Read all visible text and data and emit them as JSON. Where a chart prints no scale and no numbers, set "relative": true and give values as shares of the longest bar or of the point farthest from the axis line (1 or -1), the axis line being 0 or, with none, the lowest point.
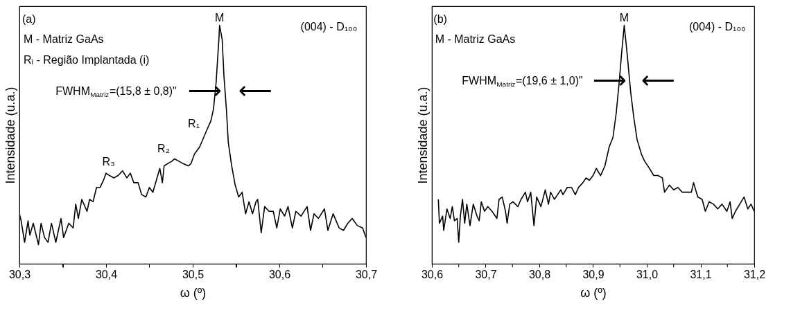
{
  "chart_data": [
    {
      "type": "line",
      "relative": true,
      "xlabel": "ω (º)",
      "ylabel": "Intensidade (u.a.)",
      "xlim": [
        30.3,
        30.7
      ],
      "xticks": [
        {
          "value": 30.3,
          "label": "30,3"
        },
        {
          "value": 30.35,
          "label": null
        },
        {
          "value": 30.4,
          "label": "30,4"
        },
        {
          "value": 30.45,
          "label": null
        },
        {
          "value": 30.5,
          "label": "30,5"
        },
        {
          "value": 30.55,
          "label": null
        },
        {
          "value": 30.6,
          "label": "30,6"
        },
        {
          "value": 30.65,
          "label": null
        },
        {
          "value": 30.7,
          "label": "30,7"
        }
      ],
      "tick_labels": "x",
      "legend": false,
      "grid": false,
      "series": [
        {
          "color": "#000000",
          "x": [
            30.3,
            30.302,
            30.306,
            30.31,
            30.312,
            30.316,
            30.322,
            30.325,
            30.329,
            30.333,
            30.337,
            30.342,
            30.348,
            30.351,
            30.357,
            30.362,
            30.365,
            30.368,
            30.372,
            30.378,
            30.381,
            30.385,
            30.389,
            30.393,
            30.397,
            30.4,
            30.404,
            30.409,
            30.414,
            30.419,
            30.424,
            30.428,
            30.432,
            30.437,
            30.441,
            30.446,
            30.45,
            30.454,
            30.458,
            30.462,
            30.465,
            30.467,
            30.471,
            30.476,
            30.479,
            30.484,
            30.489,
            30.495,
            30.498,
            30.502,
            30.508,
            30.515,
            30.521,
            30.524,
            30.527,
            30.53,
            30.531,
            30.534,
            30.536,
            30.539,
            30.541,
            30.545,
            30.549,
            30.553,
            30.557,
            30.561,
            30.565,
            30.569,
            30.573,
            30.575,
            30.579,
            30.583,
            30.588,
            30.593,
            30.597,
            30.601,
            30.606,
            30.61,
            30.615,
            30.619,
            30.625,
            30.632,
            30.636,
            30.64,
            30.645,
            30.652,
            30.656,
            30.662,
            30.669,
            30.674,
            30.679,
            30.684,
            30.69,
            30.696,
            30.7
          ],
          "values": [
            0.21,
            0.18,
            0.09,
            0.18,
            0.12,
            0.17,
            0.08,
            0.17,
            0.11,
            0.09,
            0.17,
            0.09,
            0.19,
            0.11,
            0.17,
            0.15,
            0.25,
            0.19,
            0.27,
            0.22,
            0.27,
            0.26,
            0.32,
            0.32,
            0.35,
            0.38,
            0.37,
            0.36,
            0.37,
            0.39,
            0.36,
            0.38,
            0.34,
            0.34,
            0.29,
            0.28,
            0.32,
            0.3,
            0.35,
            0.4,
            0.34,
            0.41,
            0.42,
            0.43,
            0.44,
            0.43,
            0.42,
            0.41,
            0.42,
            0.46,
            0.49,
            0.55,
            0.6,
            0.65,
            0.76,
            0.93,
            1,
            0.94,
            0.79,
            0.64,
            0.51,
            0.41,
            0.33,
            0.28,
            0.3,
            0.21,
            0.26,
            0.21,
            0.26,
            0.27,
            0.13,
            0.24,
            0.22,
            0.22,
            0.15,
            0.23,
            0.2,
            0.24,
            0.15,
            0.22,
            0.2,
            0.24,
            0.14,
            0.21,
            0.19,
            0.23,
            0.14,
            0.21,
            0.15,
            0.14,
            0.17,
            0.19,
            0.16,
            0.15,
            0.11
          ]
        }
      ],
      "annotations": [
        "(a)",
        "M - Matriz GaAs",
        "Rᵢ - Região Implantada (i)",
        "(004) - D₁₀₀",
        "FWHM$_{Matriz}$=(15,8 ± 0,8)\"",
        "R₁",
        "R₂",
        "R₃",
        "⟶",
        "⟵",
        {
          "text": "M",
          "x": 30.531,
          "y": 1
        }
      ]
    },
    {
      "type": "line",
      "relative": true,
      "xlabel": "ω (º)",
      "ylabel": "Intensidade (u.a.)",
      "xlim": [
        30.6,
        31.2
      ],
      "xticks": [
        {
          "value": 30.6,
          "label": "30,6"
        },
        {
          "value": 30.65,
          "label": null
        },
        {
          "value": 30.7,
          "label": "30,7"
        },
        {
          "value": 30.75,
          "label": null
        },
        {
          "value": 30.8,
          "label": "30,8"
        },
        {
          "value": 30.85,
          "label": null
        },
        {
          "value": 30.9,
          "label": "30,9"
        },
        {
          "value": 30.95,
          "label": null
        },
        {
          "value": 31.0,
          "label": "31,0"
        },
        {
          "value": 31.05,
          "label": null
        },
        {
          "value": 31.1,
          "label": "31,1"
        },
        {
          "value": 31.15,
          "label": null
        },
        {
          "value": 31.2,
          "label": "31,2"
        }
      ],
      "tick_labels": "x",
      "legend": false,
      "grid": false,
      "series": [
        {
          "color": "#000000",
          "x": [
            30.612,
            30.614,
            30.62,
            30.622,
            30.628,
            30.634,
            30.638,
            30.642,
            30.647,
            30.65,
            30.653,
            30.657,
            30.661,
            30.665,
            30.671,
            30.677,
            30.684,
            30.688,
            30.692,
            30.698,
            30.704,
            30.712,
            30.721,
            30.725,
            30.731,
            30.737,
            30.74,
            30.745,
            30.751,
            30.76,
            30.766,
            30.774,
            30.778,
            30.784,
            30.79,
            30.795,
            30.803,
            30.811,
            30.817,
            30.821,
            30.828,
            30.834,
            30.84,
            30.844,
            30.852,
            30.86,
            30.867,
            30.873,
            30.881,
            30.887,
            30.893,
            30.9,
            30.906,
            30.914,
            30.922,
            30.926,
            30.93,
            30.937,
            30.943,
            30.949,
            30.953,
            30.958,
            30.963,
            30.97,
            30.976,
            30.982,
            30.99,
            30.996,
            31.005,
            31.013,
            31.021,
            31.029,
            31.033,
            31.042,
            31.05,
            31.058,
            31.066,
            31.074,
            31.083,
            31.087,
            31.095,
            31.103,
            31.109,
            31.116,
            31.124,
            31.132,
            31.14,
            31.149,
            31.155,
            31.159,
            31.165,
            31.173,
            31.181,
            31.188,
            31.194,
            31.2
          ],
          "values": [
            0.27,
            0.17,
            0.2,
            0.14,
            0.23,
            0.19,
            0.24,
            0.18,
            0.19,
            0.09,
            0.2,
            0.27,
            0.17,
            0.25,
            0.16,
            0.25,
            0.2,
            0.18,
            0.26,
            0.22,
            0.24,
            0.22,
            0.19,
            0.27,
            0.28,
            0.22,
            0.17,
            0.25,
            0.26,
            0.24,
            0.27,
            0.3,
            0.26,
            0.3,
            0.16,
            0.28,
            0.24,
            0.31,
            0.25,
            0.3,
            0.27,
            0.29,
            0.31,
            0.29,
            0.32,
            0.32,
            0.29,
            0.32,
            0.34,
            0.36,
            0.35,
            0.37,
            0.4,
            0.37,
            0.41,
            0.45,
            0.49,
            0.53,
            0.63,
            0.77,
            0.88,
            1,
            0.89,
            0.72,
            0.61,
            0.52,
            0.46,
            0.43,
            0.4,
            0.37,
            0.37,
            0.36,
            0.3,
            0.33,
            0.31,
            0.32,
            0.3,
            0.3,
            0.3,
            0.34,
            0.28,
            0.27,
            0.22,
            0.26,
            0.25,
            0.23,
            0.25,
            0.22,
            0.26,
            0.19,
            0.22,
            0.25,
            0.28,
            0.23,
            0.25,
            0.22
          ]
        }
      ],
      "annotations": [
        "(b)",
        "M - Matriz GaAs",
        "(004) - D₁₀₀",
        "FWHM$_{Matriz}$=(19,6 ± 1,0)\"",
        "⟶",
        "⟵",
        {
          "text": "M",
          "x": 30.958,
          "y": 1
        }
      ]
    }
  ]
}
